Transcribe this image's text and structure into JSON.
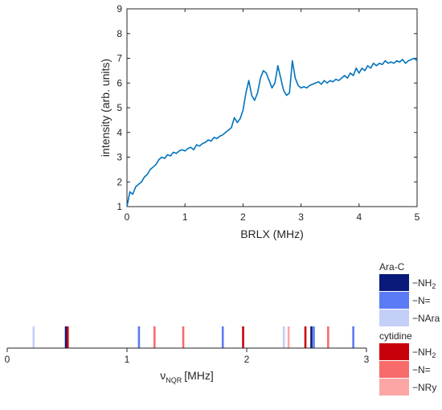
{
  "chart_data": [
    {
      "type": "line",
      "title": "",
      "xlabel": "BRLX (MHz)",
      "ylabel": "intensity (arb. units)",
      "xlim": [
        0,
        5
      ],
      "ylim": [
        1,
        9
      ],
      "xticks": [
        0,
        1,
        2,
        3,
        4,
        5
      ],
      "yticks": [
        1,
        2,
        3,
        4,
        5,
        6,
        7,
        8,
        9
      ],
      "ytick_labels": [
        "1",
        "2",
        "3",
        "4",
        "5",
        "6",
        "7",
        "8",
        "9"
      ],
      "grid": false,
      "line_color": "#0072bd",
      "series": [
        {
          "x": [
            0.0,
            0.05,
            0.1,
            0.15,
            0.2,
            0.25,
            0.3,
            0.35,
            0.4,
            0.45,
            0.5,
            0.55,
            0.6,
            0.65,
            0.7,
            0.75,
            0.8,
            0.85,
            0.9,
            0.95,
            1.0,
            1.05,
            1.1,
            1.15,
            1.2,
            1.25,
            1.3,
            1.35,
            1.4,
            1.45,
            1.5,
            1.55,
            1.6,
            1.65,
            1.7,
            1.75,
            1.8,
            1.85,
            1.9,
            1.95,
            2.0,
            2.05,
            2.1,
            2.15,
            2.2,
            2.25,
            2.3,
            2.35,
            2.4,
            2.45,
            2.5,
            2.55,
            2.6,
            2.65,
            2.7,
            2.75,
            2.8,
            2.85,
            2.9,
            2.95,
            3.0,
            3.05,
            3.1,
            3.15,
            3.2,
            3.25,
            3.3,
            3.35,
            3.4,
            3.45,
            3.5,
            3.55,
            3.6,
            3.65,
            3.7,
            3.75,
            3.8,
            3.85,
            3.9,
            3.95,
            4.0,
            4.05,
            4.1,
            4.15,
            4.2,
            4.25,
            4.3,
            4.35,
            4.4,
            4.45,
            4.5,
            4.55,
            4.6,
            4.65,
            4.7,
            4.75,
            4.8,
            4.85,
            4.9,
            4.95,
            5.0
          ],
          "y": [
            1.0,
            1.6,
            1.5,
            1.8,
            1.9,
            2.0,
            2.2,
            2.3,
            2.5,
            2.6,
            2.7,
            2.9,
            3.0,
            2.95,
            3.1,
            3.05,
            3.2,
            3.15,
            3.25,
            3.3,
            3.25,
            3.35,
            3.4,
            3.3,
            3.5,
            3.45,
            3.55,
            3.6,
            3.7,
            3.65,
            3.8,
            3.75,
            3.85,
            3.9,
            4.0,
            4.1,
            4.2,
            4.6,
            4.4,
            4.55,
            4.9,
            5.6,
            6.1,
            5.5,
            5.3,
            5.6,
            6.2,
            6.5,
            6.4,
            6.1,
            5.8,
            6.0,
            6.7,
            6.2,
            5.7,
            5.5,
            5.6,
            6.9,
            6.2,
            5.9,
            5.8,
            5.85,
            5.8,
            5.9,
            5.95,
            6.0,
            6.05,
            5.95,
            6.1,
            6.0,
            6.1,
            6.05,
            6.15,
            6.1,
            6.2,
            6.3,
            6.2,
            6.4,
            6.3,
            6.6,
            6.4,
            6.6,
            6.5,
            6.7,
            6.6,
            6.8,
            6.7,
            6.8,
            6.75,
            6.9,
            6.8,
            6.85,
            6.8,
            6.9,
            6.85,
            6.95,
            6.8,
            6.9,
            6.95,
            7.0,
            6.9
          ]
        }
      ]
    },
    {
      "type": "bar",
      "title": "",
      "xlabel_main": "ν",
      "xlabel_sub": "NQR",
      "xlabel_unit": "[MHz]",
      "xlim": [
        0,
        3
      ],
      "xticks": [
        0,
        1,
        2,
        3
      ],
      "legend_position": "top-right",
      "groups": [
        {
          "name": "Ara-C",
          "series": [
            {
              "name": "−NH",
              "sub": "2",
              "color": "#0a1a7a"
            },
            {
              "name": "−N=",
              "sub": "",
              "color": "#5b7af5"
            },
            {
              "name": "−NAra",
              "sub": "",
              "color": "#c4cff8"
            }
          ]
        },
        {
          "name": "cytidine",
          "series": [
            {
              "name": "−NH",
              "sub": "2",
              "color": "#c8000a"
            },
            {
              "name": "−N=",
              "sub": "",
              "color": "#f76b6b"
            },
            {
              "name": "−NRy",
              "sub": "",
              "color": "#fca6a6"
            }
          ]
        }
      ],
      "lines": [
        {
          "x": 0.22,
          "color": "#c4cff8"
        },
        {
          "x": 0.49,
          "color": "#0a1a7a"
        },
        {
          "x": 0.505,
          "color": "#c8000a"
        },
        {
          "x": 1.1,
          "color": "#5b7af5"
        },
        {
          "x": 1.23,
          "color": "#f76b6b"
        },
        {
          "x": 1.47,
          "color": "#f76b6b"
        },
        {
          "x": 1.8,
          "color": "#5b7af5"
        },
        {
          "x": 1.97,
          "color": "#c8000a"
        },
        {
          "x": 2.31,
          "color": "#c4cff8"
        },
        {
          "x": 2.35,
          "color": "#fca6a6"
        },
        {
          "x": 2.49,
          "color": "#c8000a"
        },
        {
          "x": 2.54,
          "color": "#0a1a7a"
        },
        {
          "x": 2.56,
          "color": "#5b7af5"
        },
        {
          "x": 2.68,
          "color": "#f76b6b"
        },
        {
          "x": 2.89,
          "color": "#5b7af5"
        }
      ]
    }
  ]
}
